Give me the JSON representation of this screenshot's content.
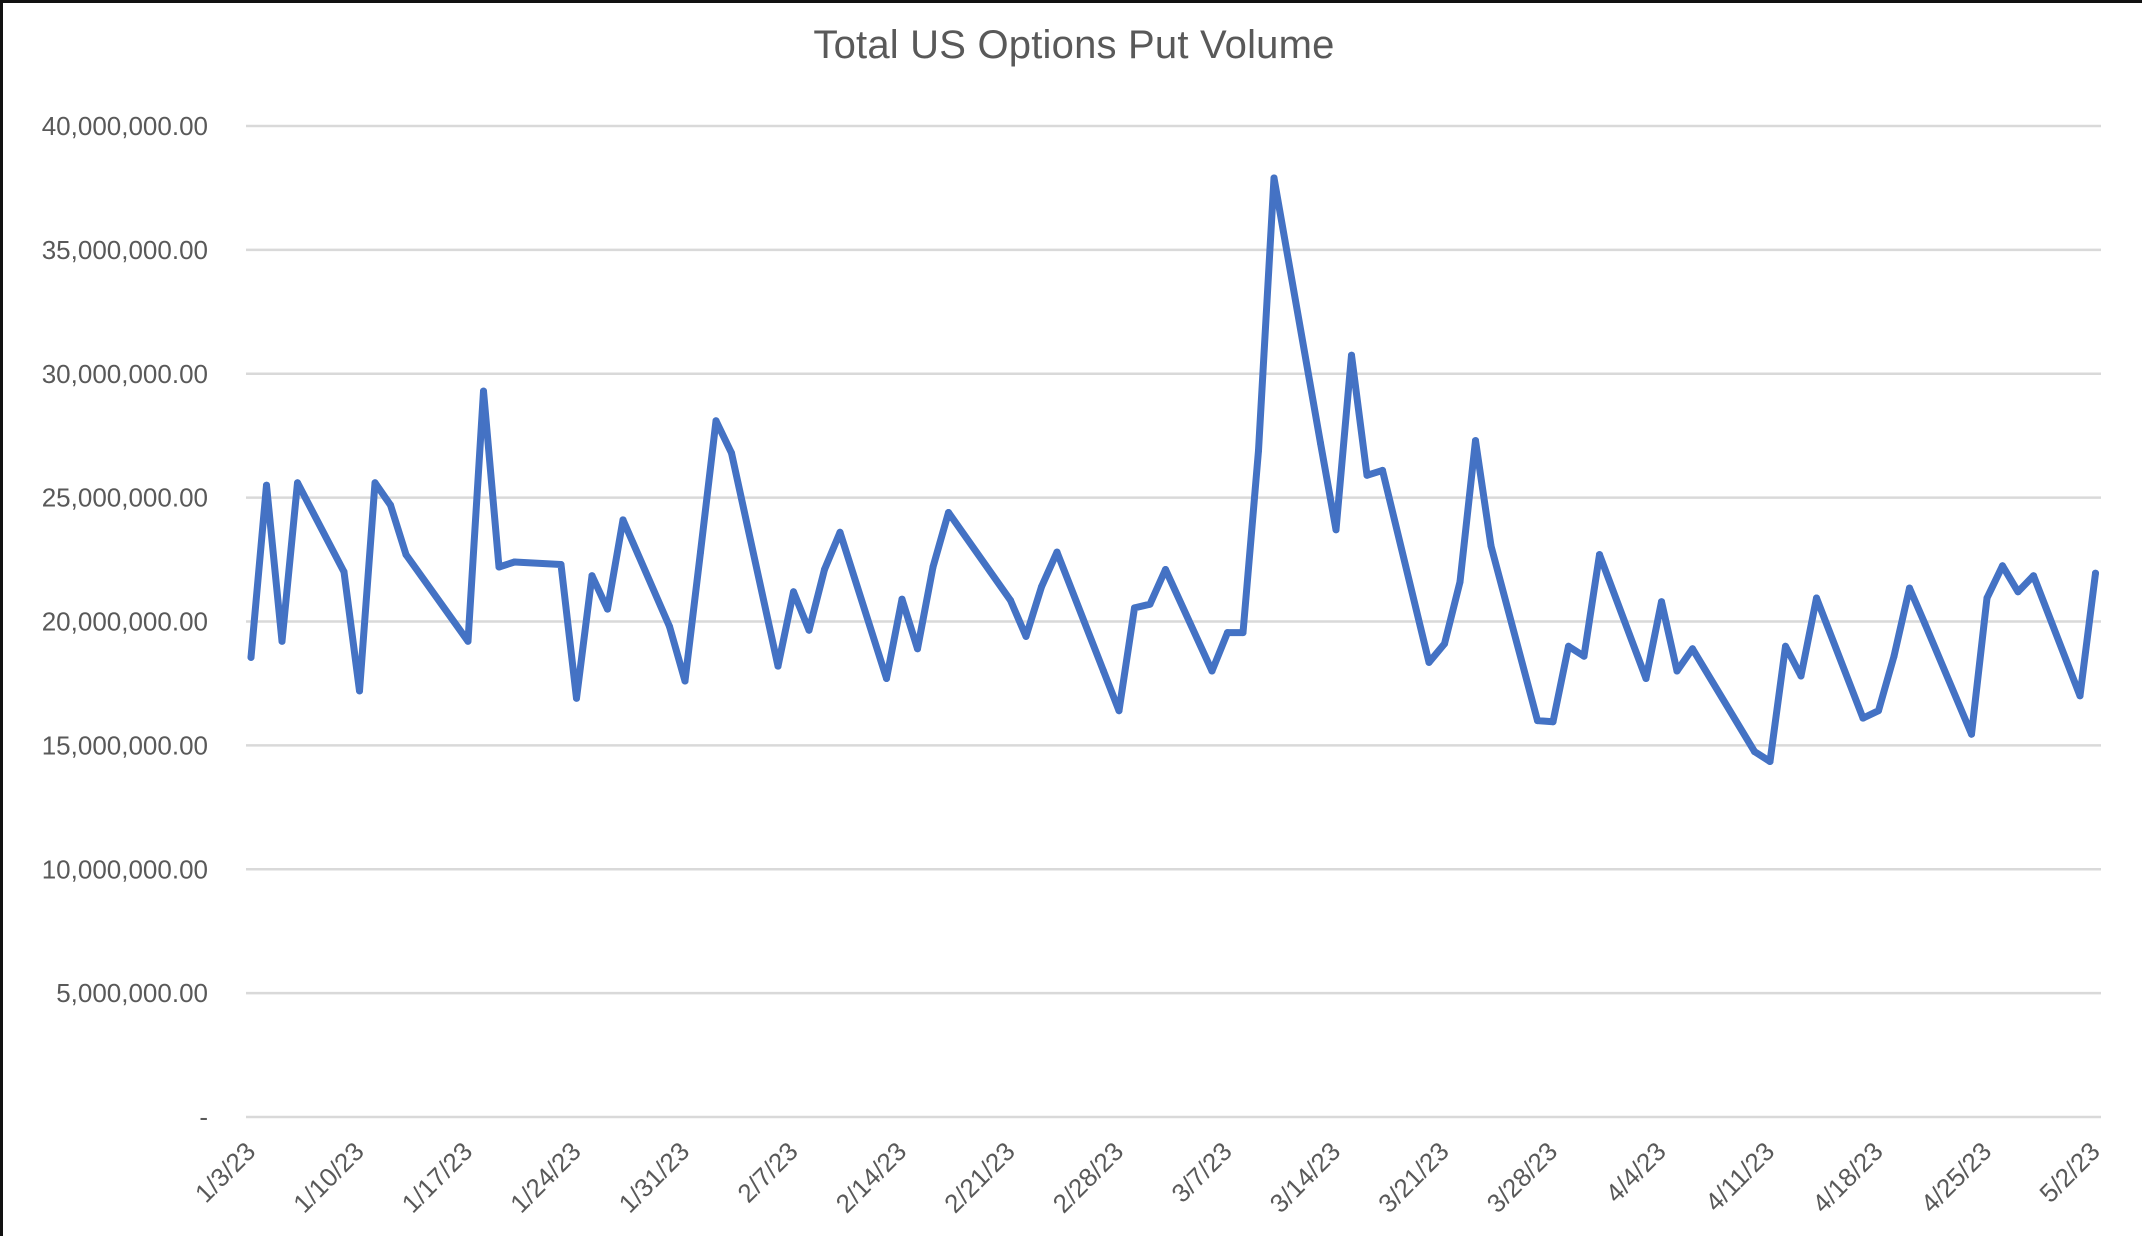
{
  "chart_data": {
    "type": "line",
    "title": "Total US Options Put Volume",
    "xlabel": "",
    "ylabel": "",
    "ylim": [
      0,
      40000000
    ],
    "grid": true,
    "legend": "none",
    "colors": {
      "series": "#4472C4",
      "grid": "#D9D9D9",
      "text": "#595959"
    },
    "y_ticks": [
      {
        "value": 0,
        "label": "-"
      },
      {
        "value": 5000000,
        "label": "5,000,000.00"
      },
      {
        "value": 10000000,
        "label": "10,000,000.00"
      },
      {
        "value": 15000000,
        "label": "15,000,000.00"
      },
      {
        "value": 20000000,
        "label": "20,000,000.00"
      },
      {
        "value": 25000000,
        "label": "25,000,000.00"
      },
      {
        "value": 30000000,
        "label": "30,000,000.00"
      },
      {
        "value": 35000000,
        "label": "35,000,000.00"
      },
      {
        "value": 40000000,
        "label": "40,000,000.00"
      }
    ],
    "x_ticks": [
      "1/3/23",
      "1/10/23",
      "1/17/23",
      "1/24/23",
      "1/31/23",
      "2/7/23",
      "2/14/23",
      "2/21/23",
      "2/28/23",
      "3/7/23",
      "3/14/23",
      "3/21/23",
      "3/28/23",
      "4/4/23",
      "4/11/23",
      "4/18/23",
      "4/25/23",
      "5/2/23"
    ],
    "x": [
      "1/3/23",
      "1/4/23",
      "1/5/23",
      "1/6/23",
      "1/9/23",
      "1/10/23",
      "1/11/23",
      "1/12/23",
      "1/13/23",
      "1/17/23",
      "1/18/23",
      "1/19/23",
      "1/20/23",
      "1/23/23",
      "1/24/23",
      "1/25/23",
      "1/26/23",
      "1/27/23",
      "1/30/23",
      "1/31/23",
      "2/1/23",
      "2/2/23",
      "2/3/23",
      "2/6/23",
      "2/7/23",
      "2/8/23",
      "2/9/23",
      "2/10/23",
      "2/13/23",
      "2/14/23",
      "2/15/23",
      "2/16/23",
      "2/17/23",
      "2/21/23",
      "2/22/23",
      "2/23/23",
      "2/24/23",
      "2/27/23",
      "2/28/23",
      "3/1/23",
      "3/2/23",
      "3/3/23",
      "3/6/23",
      "3/7/23",
      "3/8/23",
      "3/9/23",
      "3/10/23",
      "3/13/23",
      "3/14/23",
      "3/15/23",
      "3/16/23",
      "3/17/23",
      "3/20/23",
      "3/21/23",
      "3/22/23",
      "3/23/23",
      "3/24/23",
      "3/27/23",
      "3/28/23",
      "3/29/23",
      "3/30/23",
      "3/31/23",
      "4/3/23",
      "4/4/23",
      "4/5/23",
      "4/6/23",
      "4/10/23",
      "4/11/23",
      "4/12/23",
      "4/13/23",
      "4/14/23",
      "4/17/23",
      "4/18/23",
      "4/19/23",
      "4/20/23",
      "4/21/23",
      "4/24/23",
      "4/25/23",
      "4/26/23",
      "4/27/23",
      "4/28/23",
      "5/1/23",
      "5/2/23"
    ],
    "series": [
      {
        "name": "Total US Options Put Volume",
        "values": [
          18550000,
          25500000,
          19200000,
          25600000,
          22000000,
          17200000,
          25600000,
          24700000,
          22700000,
          19200000,
          29300000,
          22200000,
          22400000,
          22300000,
          16900000,
          21850000,
          20500000,
          24100000,
          19800000,
          17600000,
          22800000,
          28100000,
          26800000,
          18200000,
          21200000,
          19650000,
          22100000,
          23600000,
          17700000,
          20900000,
          18900000,
          22200000,
          24400000,
          20850000,
          19400000,
          21400000,
          22800000,
          18000000,
          16400000,
          20550000,
          20700000,
          22100000,
          18000000,
          19550000,
          19550000,
          26900000,
          37900000,
          27200000,
          23700000,
          30750000,
          25900000,
          26100000,
          18350000,
          19100000,
          21600000,
          27300000,
          23050000,
          16000000,
          15950000,
          19000000,
          18600000,
          22700000,
          17700000,
          20800000,
          18000000,
          18900000,
          14750000,
          14350000,
          19000000,
          17800000,
          20950000,
          16100000,
          16400000,
          18600000,
          21350000,
          19900000,
          15450000,
          20950000,
          22250000,
          21200000,
          21850000,
          17000000,
          21950000
        ]
      }
    ]
  }
}
